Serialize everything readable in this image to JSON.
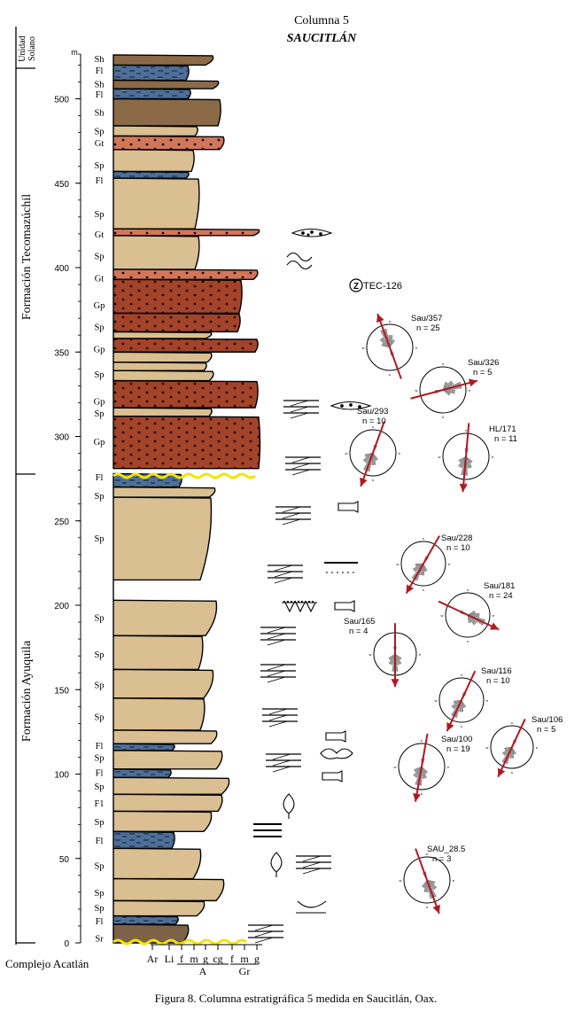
{
  "header": {
    "column": "Columna 5",
    "locality": "SAUCITLÁN"
  },
  "units": {
    "unidad_solano": "Unidad Solano",
    "tecomazuchil": "Formación Tecomazúchil",
    "ayuquila": "Formación Ayuquila",
    "basement": "Complejo Acatlán"
  },
  "scale": {
    "unit": "m",
    "ticks": [
      {
        "v": 0,
        "label": "0"
      },
      {
        "v": 50,
        "label": "50"
      },
      {
        "v": 100,
        "label": "100"
      },
      {
        "v": 150,
        "label": "150"
      },
      {
        "v": 200,
        "label": "200"
      },
      {
        "v": 250,
        "label": "250"
      },
      {
        "v": 300,
        "label": "300"
      },
      {
        "v": 350,
        "label": "350"
      },
      {
        "v": 400,
        "label": "400"
      },
      {
        "v": 450,
        "label": "450"
      },
      {
        "v": 500,
        "label": "500"
      }
    ]
  },
  "facies": [
    {
      "v": 524,
      "code": "Sh"
    },
    {
      "v": 517,
      "code": "Fl"
    },
    {
      "v": 509,
      "code": "Sh"
    },
    {
      "v": 503,
      "code": "Fl"
    },
    {
      "v": 492,
      "code": "Sh"
    },
    {
      "v": 481,
      "code": "Sp"
    },
    {
      "v": 474,
      "code": "Gt"
    },
    {
      "v": 461,
      "code": "Sp"
    },
    {
      "v": 452,
      "code": "Fl"
    },
    {
      "v": 432,
      "code": "Sp"
    },
    {
      "v": 420,
      "code": "Gt"
    },
    {
      "v": 407,
      "code": "Sp"
    },
    {
      "v": 394,
      "code": "Gt"
    },
    {
      "v": 378,
      "code": "Gp"
    },
    {
      "v": 365,
      "code": "Sp"
    },
    {
      "v": 352,
      "code": "Gp"
    },
    {
      "v": 337,
      "code": "Sp"
    },
    {
      "v": 321,
      "code": "Gp"
    },
    {
      "v": 314,
      "code": "Sp"
    },
    {
      "v": 297,
      "code": "Gp"
    },
    {
      "v": 276,
      "code": "Fl"
    },
    {
      "v": 265,
      "code": "Sp"
    },
    {
      "v": 240,
      "code": "Sp"
    },
    {
      "v": 193,
      "code": "Sp"
    },
    {
      "v": 171,
      "code": "Sp"
    },
    {
      "v": 153,
      "code": "Sp"
    },
    {
      "v": 134,
      "code": "Sp"
    },
    {
      "v": 117,
      "code": "Fl"
    },
    {
      "v": 110,
      "code": "Sp"
    },
    {
      "v": 101,
      "code": "Fl"
    },
    {
      "v": 93,
      "code": "Sp"
    },
    {
      "v": 83,
      "code": "F1"
    },
    {
      "v": 72,
      "code": "Sp"
    },
    {
      "v": 61,
      "code": "Fl"
    },
    {
      "v": 46,
      "code": "Sp"
    },
    {
      "v": 30,
      "code": "Sp"
    },
    {
      "v": 21,
      "code": "Sp"
    },
    {
      "v": 13,
      "code": "Fl"
    },
    {
      "v": 3,
      "code": "Sr"
    }
  ],
  "grain_scale": {
    "labels": [
      "Ar",
      "Li",
      "f",
      "m",
      "g",
      "cg",
      "f",
      "m",
      "g"
    ],
    "sand": "A",
    "gravel": "Gr"
  },
  "sample": {
    "code": "TEC-126",
    "v": 400
  },
  "roses": [
    {
      "name": "Sau/357",
      "n": "n = 25",
      "az": 340,
      "v": 366,
      "r": 26
    },
    {
      "name": "Sau/326",
      "n": "n = 5",
      "az": 75,
      "v": 321,
      "r": 26
    },
    {
      "name": "Sau/293",
      "n": "n = 10",
      "az": 200,
      "v": 297,
      "r": 26
    },
    {
      "name": "HL/171",
      "n": "n = 11",
      "az": 185,
      "v": 298,
      "r": 26
    },
    {
      "name": "Sau/228",
      "n": "n = 10",
      "az": 210,
      "v": 220,
      "r": 25
    },
    {
      "name": "Sau/181",
      "n": "n = 24",
      "az": 115,
      "v": 191,
      "r": 25
    },
    {
      "name": "Sau/165",
      "n": "n = 4",
      "az": 180,
      "v": 172,
      "r": 24
    },
    {
      "name": "Sau/116",
      "n": "n = 10",
      "az": 205,
      "v": 143,
      "r": 25
    },
    {
      "name": "Sau/106",
      "n": "n = 5",
      "az": 205,
      "v": 111,
      "r": 24
    },
    {
      "name": "Sau/100",
      "n": "n = 19",
      "az": 190,
      "v": 103,
      "r": 26
    },
    {
      "name": "SAU_28.5",
      "n": "n = 3",
      "az": 160,
      "v": 34,
      "r": 26
    }
  ],
  "caption": "Figura 8. Columna estratigráfica 5 medida en Saucitlán, Oax.",
  "colors": {
    "sand": "#d9bf91",
    "silt": "#4d6f98",
    "gravel": "#a3432a",
    "gravel_light": "#d2765a",
    "shale": "#8b6a48",
    "basal": "#7d6248",
    "unconformity": "#f2e400",
    "arrow": "#b01822",
    "petal": "#9c9c9c"
  }
}
